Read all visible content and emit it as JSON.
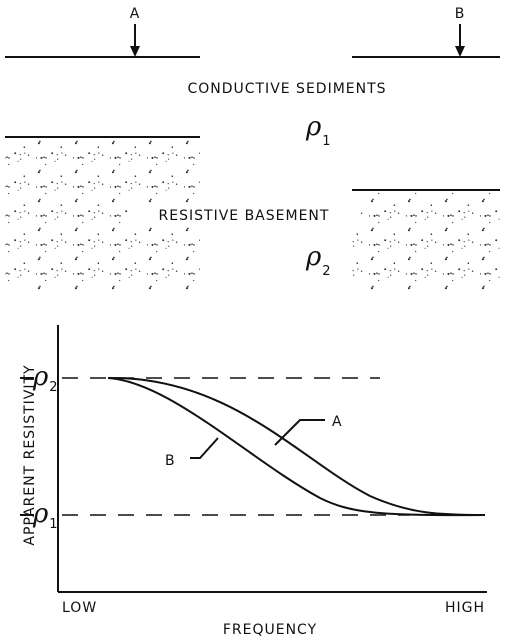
{
  "section": {
    "site_a": "A",
    "site_b": "B",
    "upper_layer": "CONDUCTIVE SEDIMENTS",
    "upper_rho": {
      "symbol": "ρ",
      "subscript": "1"
    },
    "lower_layer": "RESISTIVE BASEMENT",
    "lower_rho": {
      "symbol": "ρ",
      "subscript": "2"
    }
  },
  "graph": {
    "y_label": "APPARENT RESISTIVITY",
    "x_label": "FREQUENCY",
    "x_low": "LOW",
    "x_high": "HIGH",
    "rho_high": {
      "symbol": "ρ",
      "subscript": "2"
    },
    "rho_low": {
      "symbol": "ρ",
      "subscript": "1"
    },
    "curve_a": "A",
    "curve_b": "B"
  }
}
